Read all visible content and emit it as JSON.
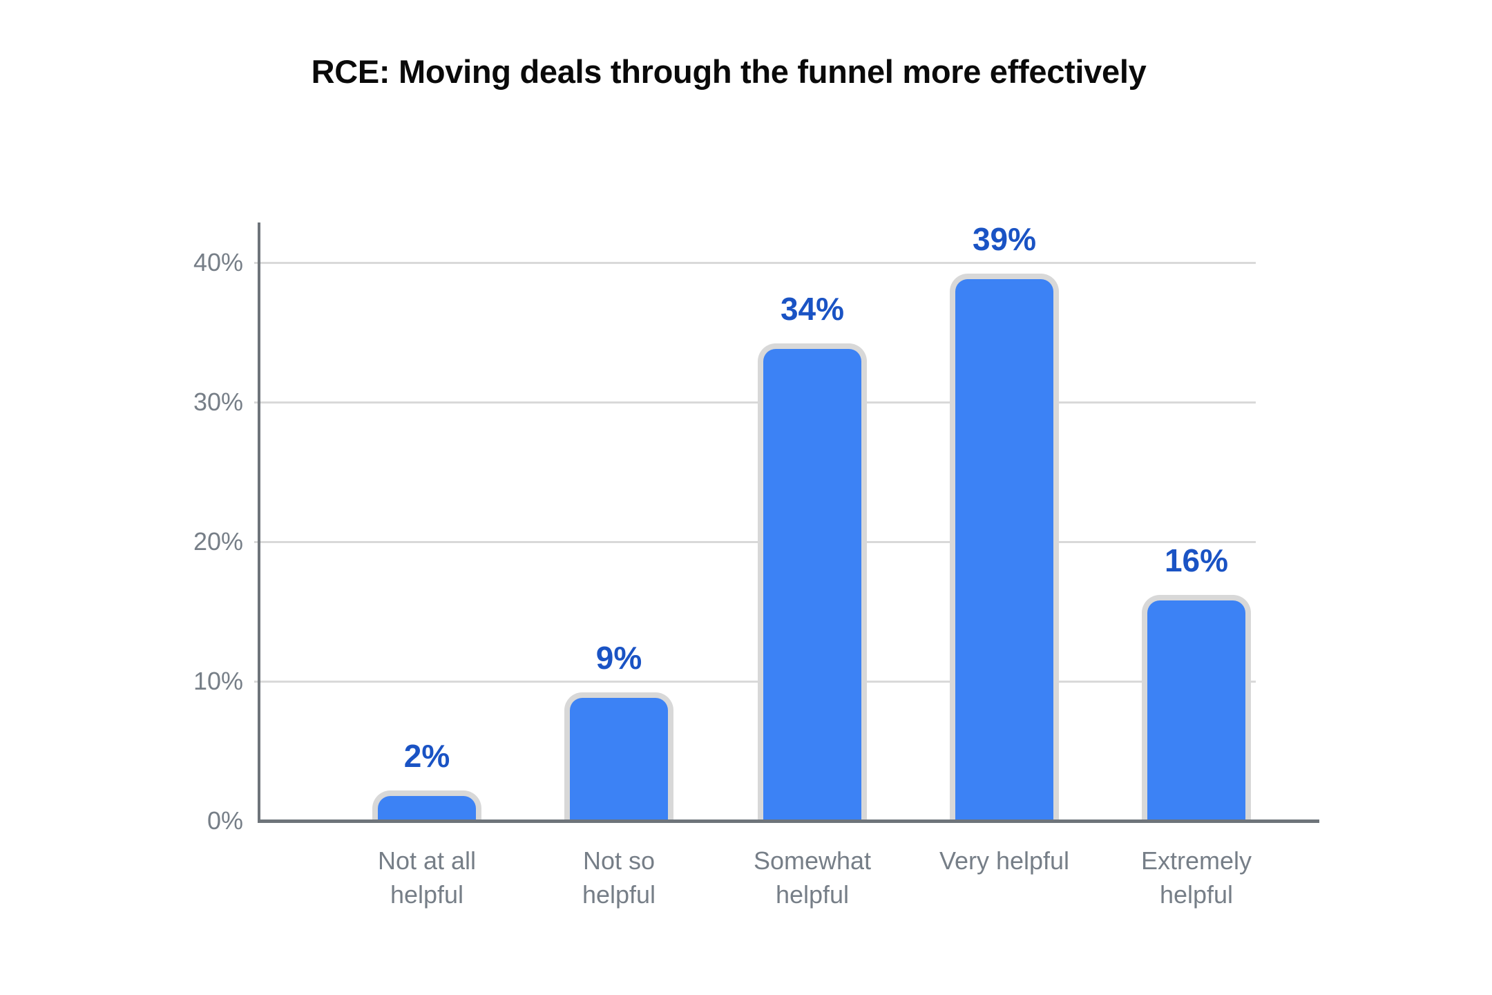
{
  "page": {
    "background": "#ffffff"
  },
  "chart_data": {
    "type": "bar",
    "title": "RCE: Moving deals through the funnel more effectively",
    "categories": [
      "Not at all helpful",
      "Not so helpful",
      "Somewhat helpful",
      "Very helpful",
      "Extremely helpful"
    ],
    "category_lines": [
      [
        "Not at all",
        "helpful"
      ],
      [
        "Not so",
        "helpful"
      ],
      [
        "Somewhat",
        "helpful"
      ],
      [
        "Very helpful"
      ],
      [
        "Extremely",
        "helpful"
      ]
    ],
    "values": [
      2,
      9,
      34,
      39,
      16
    ],
    "data_labels": [
      "2%",
      "9%",
      "34%",
      "39%",
      "16%"
    ],
    "xlabel": "",
    "ylabel": "",
    "y_axis": {
      "ticks": [
        0,
        10,
        20,
        30,
        40
      ],
      "tick_labels": [
        "0%",
        "10%",
        "20%",
        "30%",
        "40%"
      ],
      "max": 43,
      "grid": true
    },
    "legend": null,
    "layout_hints": {
      "data_label_position": "above-bars",
      "bar_corner_style": "rounded-top",
      "gridlines": "horizontal-only"
    },
    "colors": {
      "bar_fill": "#3c82f5",
      "bar_border": "#d8d8d8",
      "data_label": "#1a53c4",
      "axis_line": "#6e747a",
      "tick_label": "#767e87",
      "gridline": "#d9d9d9",
      "title": "#0a0a0a",
      "background": "#ffffff"
    }
  }
}
